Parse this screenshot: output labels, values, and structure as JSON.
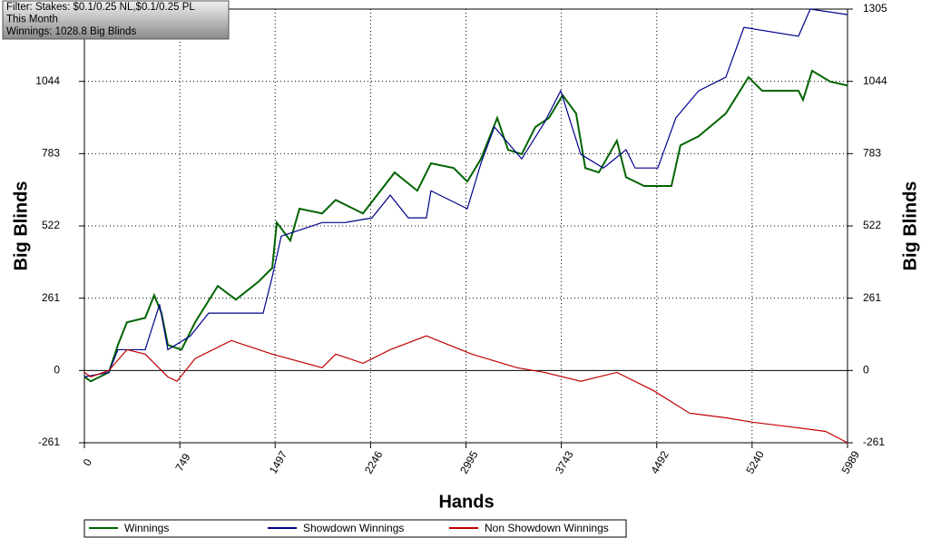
{
  "chart_data": {
    "type": "line",
    "annotations": [
      "Filter: Stakes: $0.1/0.25 NL,$0.1/0.25 PL",
      "This Month",
      "Winnings: 1028.8 Big Blinds"
    ],
    "xlabel": "Hands",
    "ylabel": "Big Blinds",
    "y2label": "Big Blinds",
    "xlim": [
      0,
      5989
    ],
    "xticks": [
      0,
      749,
      1497,
      2246,
      2995,
      3743,
      4492,
      5240,
      5989
    ],
    "ylim": [
      -261,
      1305
    ],
    "yticks": [
      -261,
      0,
      261,
      522,
      783,
      1044,
      1305
    ],
    "y2lim": [
      -261,
      1305
    ],
    "y2ticks": [
      -261,
      0,
      261,
      522,
      783,
      1044,
      1305
    ],
    "grid": true,
    "legend": "bottom",
    "series": [
      {
        "name": "Winnings",
        "color": "#006400",
        "x": [
          0,
          50,
          192,
          263,
          334,
          477,
          548,
          605,
          655,
          762,
          869,
          1047,
          1189,
          1367,
          1474,
          1510,
          1616,
          1688,
          1866,
          1972,
          2186,
          2435,
          2613,
          2720,
          2898,
          3005,
          3112,
          3240,
          3325,
          3432,
          3539,
          3646,
          3753,
          3859,
          3931,
          4037,
          4179,
          4251,
          4393,
          4607,
          4678,
          4821,
          5034,
          5212,
          5319,
          5604,
          5640,
          5711,
          5853,
          5989
        ],
        "values": [
          -23,
          -39,
          -7,
          92,
          174,
          190,
          272,
          207,
          92,
          75,
          174,
          305,
          256,
          321,
          370,
          534,
          469,
          584,
          567,
          616,
          567,
          715,
          649,
          748,
          731,
          682,
          764,
          912,
          797,
          781,
          879,
          912,
          994,
          928,
          731,
          715,
          830,
          698,
          666,
          666,
          813,
          846,
          928,
          1059,
          1010,
          1010,
          977,
          1082,
          1043,
          1029
        ]
      },
      {
        "name": "Showdown Winnings",
        "color": "#00008b",
        "x": [
          0,
          192,
          263,
          477,
          590,
          655,
          833,
          975,
          1403,
          1474,
          1545,
          1866,
          2044,
          2257,
          2400,
          2542,
          2684,
          2720,
          3005,
          3112,
          3218,
          3432,
          3610,
          3738,
          3895,
          4073,
          4251,
          4322,
          4500,
          4642,
          4821,
          5034,
          5176,
          5604,
          5697,
          5989
        ],
        "values": [
          -23,
          -7,
          75,
          75,
          239,
          75,
          125,
          207,
          207,
          338,
          485,
          534,
          534,
          551,
          633,
          551,
          551,
          649,
          584,
          748,
          879,
          764,
          895,
          1010,
          781,
          731,
          797,
          731,
          731,
          912,
          1010,
          1059,
          1239,
          1207,
          1305,
          1285
        ]
      },
      {
        "name": "Non Showdown Winnings",
        "color": "#c00000",
        "x": [
          0,
          50,
          192,
          334,
          477,
          655,
          727,
          869,
          1153,
          1474,
          1866,
          1972,
          2186,
          2400,
          2684,
          3040,
          3396,
          3610,
          3895,
          4179,
          4464,
          4749,
          5034,
          5248,
          5532,
          5817,
          5989
        ],
        "values": [
          -7,
          -23,
          0,
          75,
          59,
          -23,
          -39,
          43,
          108,
          59,
          10,
          59,
          26,
          75,
          125,
          59,
          10,
          -7,
          -39,
          -7,
          -72,
          -154,
          -171,
          -187,
          -203,
          -220,
          -261
        ]
      }
    ]
  }
}
